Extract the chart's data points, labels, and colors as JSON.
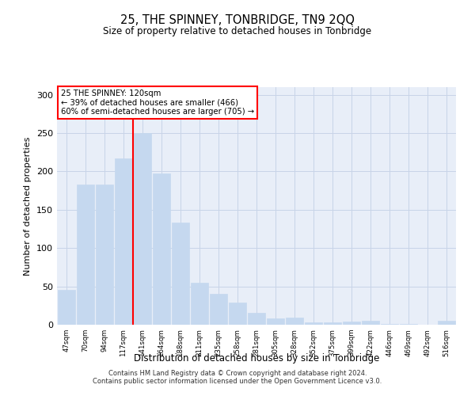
{
  "title": "25, THE SPINNEY, TONBRIDGE, TN9 2QQ",
  "subtitle": "Size of property relative to detached houses in Tonbridge",
  "xlabel": "Distribution of detached houses by size in Tonbridge",
  "ylabel": "Number of detached properties",
  "categories": [
    "47sqm",
    "70sqm",
    "94sqm",
    "117sqm",
    "141sqm",
    "164sqm",
    "188sqm",
    "211sqm",
    "235sqm",
    "258sqm",
    "281sqm",
    "305sqm",
    "328sqm",
    "352sqm",
    "375sqm",
    "399sqm",
    "422sqm",
    "446sqm",
    "469sqm",
    "492sqm",
    "516sqm"
  ],
  "values": [
    45,
    183,
    183,
    217,
    250,
    197,
    133,
    55,
    40,
    29,
    15,
    8,
    9,
    3,
    3,
    4,
    5,
    1,
    1,
    0,
    5
  ],
  "bar_color": "#c5d8ef",
  "bar_edge_color": "#c5d8ef",
  "grid_color": "#c8d4e8",
  "background_color": "#e8eef8",
  "vline_x_index": 4,
  "vline_color": "red",
  "annotation_text": "25 THE SPINNEY: 120sqm\n← 39% of detached houses are smaller (466)\n60% of semi-detached houses are larger (705) →",
  "annotation_box_color": "white",
  "annotation_box_edge_color": "red",
  "ylim": [
    0,
    310
  ],
  "yticks": [
    0,
    50,
    100,
    150,
    200,
    250,
    300
  ],
  "footer_line1": "Contains HM Land Registry data © Crown copyright and database right 2024.",
  "footer_line2": "Contains public sector information licensed under the Open Government Licence v3.0."
}
